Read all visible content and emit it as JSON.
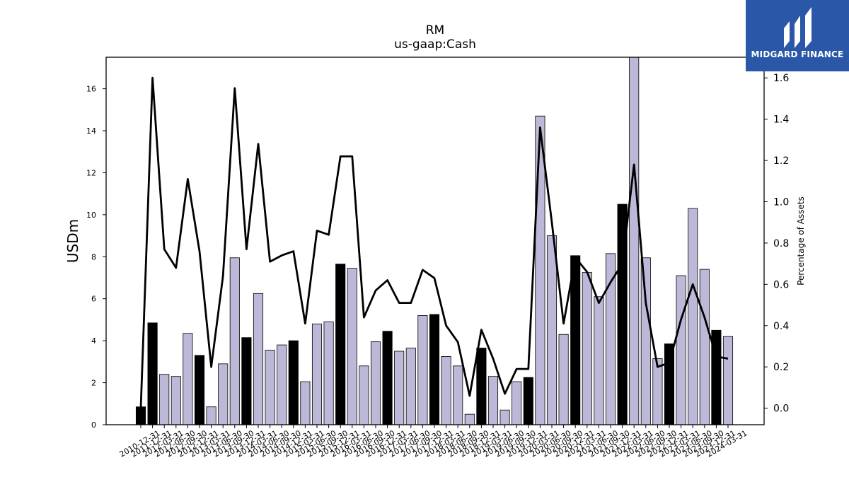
{
  "brand": {
    "name": "MIDGARD FINANCE",
    "icon": "midgard-logo-icon",
    "color": "#2a57a8"
  },
  "chart_data": {
    "type": "bar",
    "title": "RM",
    "subtitle": "us-gaap:Cash",
    "ylabel": "USDm",
    "y2label": "Percentage of Assets",
    "ylim": [
      0,
      17.5
    ],
    "y2lim": [
      -0.08,
      1.7
    ],
    "yticks": [
      0,
      2,
      4,
      6,
      8,
      10,
      12,
      14,
      16
    ],
    "y2ticks": [
      0.0,
      0.2,
      0.4,
      0.6,
      0.8,
      1.0,
      1.2,
      1.4,
      1.6
    ],
    "legend": "none",
    "grid": false,
    "colors": {
      "q4_bar": "#000000",
      "other_bar": "#bcb8d8",
      "line": "#000000"
    },
    "categories": [
      "2010-12-31",
      "2011-12-31",
      "2012-03-31",
      "2012-06-30",
      "2012-09-30",
      "2012-12-31",
      "2013-03-31",
      "2013-06-30",
      "2013-09-30",
      "2013-12-31",
      "2014-03-31",
      "2014-06-30",
      "2014-09-30",
      "2014-12-31",
      "2015-03-31",
      "2015-06-30",
      "2015-09-30",
      "2015-12-31",
      "2016-03-31",
      "2016-06-30",
      "2016-09-30",
      "2016-12-31",
      "2017-03-31",
      "2017-06-30",
      "2017-09-30",
      "2017-12-31",
      "2018-03-31",
      "2018-06-30",
      "2018-09-30",
      "2018-12-31",
      "2019-03-31",
      "2019-06-30",
      "2019-09-30",
      "2019-12-31",
      "2020-03-31",
      "2020-06-30",
      "2020-09-30",
      "2020-12-31",
      "2021-03-31",
      "2021-06-30",
      "2021-09-30",
      "2021-12-31",
      "2022-03-31",
      "2022-06-30",
      "2022-09-30",
      "2022-12-31",
      "2023-03-31",
      "2023-06-30",
      "2023-09-30",
      "2023-12-31",
      "2024-03-31"
    ],
    "series": [
      {
        "kind": "bar",
        "axis": "left",
        "values": [
          0.85,
          4.85,
          2.4,
          2.3,
          4.35,
          3.3,
          0.85,
          2.9,
          7.95,
          4.15,
          6.25,
          3.55,
          3.8,
          4.0,
          2.05,
          4.8,
          4.9,
          7.65,
          7.45,
          2.8,
          3.95,
          4.45,
          3.5,
          3.65,
          5.2,
          5.25,
          3.25,
          2.8,
          0.5,
          3.65,
          2.3,
          0.7,
          2.05,
          2.25,
          14.7,
          9.0,
          4.3,
          8.05,
          7.25,
          6.1,
          8.15,
          10.5,
          17.5,
          7.95,
          3.15,
          3.85,
          7.1,
          10.3,
          7.4,
          4.5,
          4.2
        ]
      },
      {
        "kind": "line",
        "axis": "right",
        "values": [
          0.0,
          1.6,
          0.77,
          0.68,
          1.11,
          0.76,
          0.2,
          0.64,
          1.55,
          0.77,
          1.28,
          0.71,
          0.74,
          0.76,
          0.41,
          0.86,
          0.84,
          1.22,
          1.22,
          0.44,
          0.57,
          0.62,
          0.51,
          0.51,
          0.67,
          0.63,
          0.4,
          0.32,
          0.06,
          0.38,
          0.24,
          0.07,
          0.19,
          0.19,
          1.36,
          0.9,
          0.41,
          0.73,
          0.66,
          0.51,
          0.61,
          0.7,
          1.18,
          0.51,
          0.2,
          0.22,
          0.43,
          0.6,
          0.44,
          0.25,
          0.24
        ]
      }
    ]
  }
}
